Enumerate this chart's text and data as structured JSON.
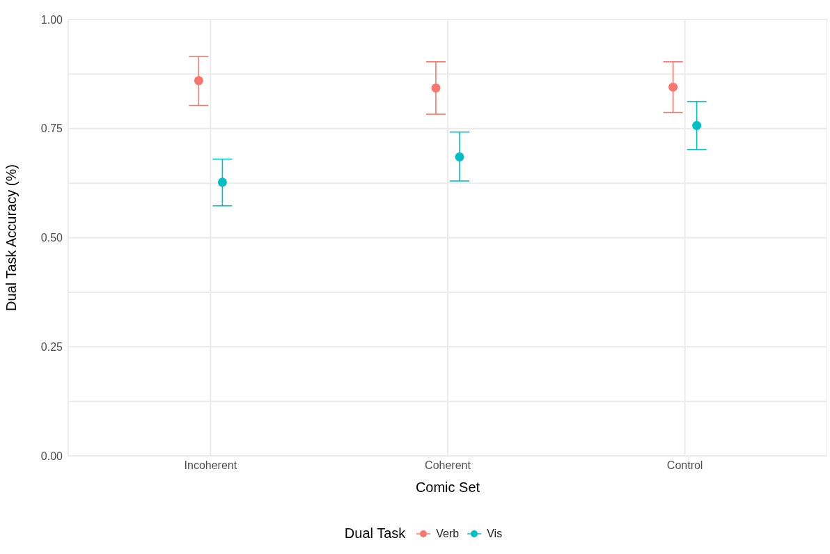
{
  "chart_data": {
    "type": "scatter",
    "xlabel": "Comic Set",
    "ylabel": "Dual Task Accuracy (%)",
    "legend_title": "Dual Task",
    "categories": [
      "Incoherent",
      "Coherent",
      "Control"
    ],
    "series": [
      {
        "name": "Verb",
        "color": "#f8766d",
        "values": [
          0.86,
          0.843,
          0.845
        ],
        "errors": [
          [
            0.803,
            0.915
          ],
          [
            0.783,
            0.903
          ],
          [
            0.787,
            0.903
          ]
        ]
      },
      {
        "name": "Vis",
        "color": "#00bfc4",
        "values": [
          0.627,
          0.685,
          0.757
        ],
        "errors": [
          [
            0.573,
            0.68
          ],
          [
            0.63,
            0.742
          ],
          [
            0.702,
            0.812
          ]
        ]
      }
    ],
    "ylim": [
      0,
      1
    ],
    "yticks": [
      {
        "value": 0,
        "label": "0.00"
      },
      {
        "value": 0.125,
        "label": null
      },
      {
        "value": 0.25,
        "label": "0.25"
      },
      {
        "value": 0.375,
        "label": null
      },
      {
        "value": 0.5,
        "label": "0.50"
      },
      {
        "value": 0.625,
        "label": null
      },
      {
        "value": 0.75,
        "label": "0.75"
      },
      {
        "value": 0.875,
        "label": null
      },
      {
        "value": 1,
        "label": "1.00"
      }
    ],
    "grid": true,
    "legend": "bottom",
    "marker": "circle"
  }
}
